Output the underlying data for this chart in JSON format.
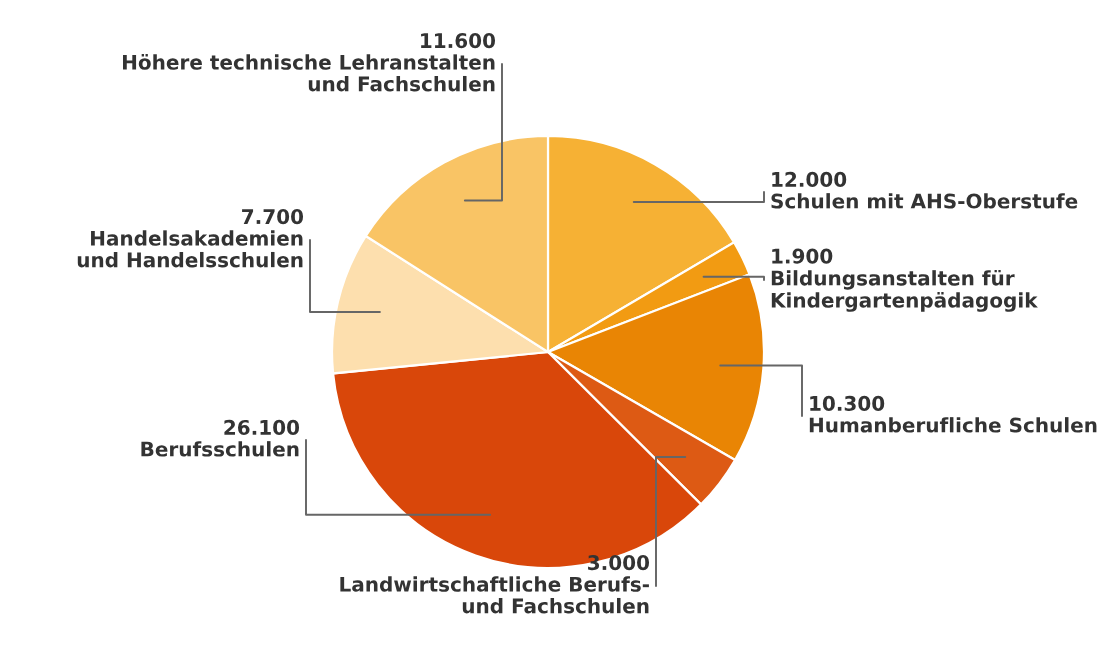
{
  "chart_data": {
    "type": "pie",
    "categories": [
      "Schulen mit AHS-Oberstufe",
      "Bildungsanstalten für\nKindergartenpädagogik",
      "Humanberufliche Schulen",
      "Landwirtschaftliche Berufs-\nund Fachschulen",
      "Berufsschulen",
      "Handelsakademien\nund Handelsschulen",
      "Höhere technische Lehranstalten\nund Fachschulen"
    ],
    "values": [
      12000,
      1900,
      10300,
      3000,
      26100,
      7700,
      11600
    ],
    "value_labels": [
      "12.000",
      "1.900",
      "10.300",
      "3.000",
      "26.100",
      "7.700",
      "11.600"
    ],
    "colors": [
      "#f6b134",
      "#f29b12",
      "#e98504",
      "#dd5a14",
      "#d9470a",
      "#fddfae",
      "#f9c465"
    ]
  }
}
